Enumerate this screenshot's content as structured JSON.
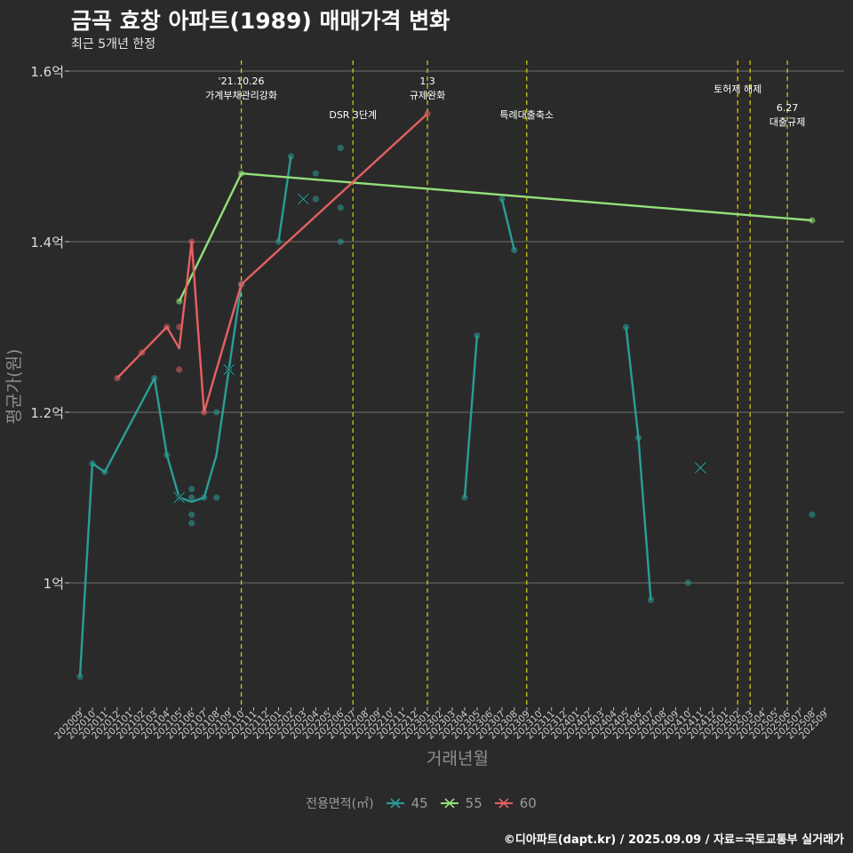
{
  "header": {
    "title": "금곡 효창 아파트(1989) 매매가격 변화",
    "subtitle": "최근 5개년 한정"
  },
  "caption": "©디아파트(dapt.kr) / 2025.09.09 / 자료=국토교통부 실거래가",
  "legend": {
    "title": "전용면적(㎡)",
    "items": [
      {
        "label": "45",
        "color": "#2a9d96"
      },
      {
        "label": "55",
        "color": "#93e07a"
      },
      {
        "label": "60",
        "color": "#e36161"
      }
    ]
  },
  "chart_data": {
    "type": "line",
    "title": "금곡 효창 아파트(1989) 매매가격 변화",
    "xlabel": "거래년월",
    "ylabel": "평균가(원)",
    "ylim": [
      0.86,
      1.62
    ],
    "yticks": [
      {
        "value": 1.0,
        "label": "1억"
      },
      {
        "value": 1.2,
        "label": "1.2억"
      },
      {
        "value": 1.4,
        "label": "1.4억"
      },
      {
        "value": 1.6,
        "label": "1.6억"
      }
    ],
    "categories": [
      "202009",
      "202010",
      "202011",
      "202012",
      "202101",
      "202102",
      "202103",
      "202104",
      "202105",
      "202106",
      "202107",
      "202108",
      "202109",
      "202110",
      "202111",
      "202112",
      "202201",
      "202202",
      "202203",
      "202204",
      "202205",
      "202206",
      "202207",
      "202208",
      "202209",
      "202210",
      "202211",
      "202212",
      "202301",
      "202302",
      "202303",
      "202304",
      "202305",
      "202306",
      "202307",
      "202308",
      "202309",
      "202310",
      "202311",
      "202312",
      "202401",
      "202402",
      "202403",
      "202404",
      "202405",
      "202406",
      "202407",
      "202408",
      "202409",
      "202410",
      "202411",
      "202412",
      "202501",
      "202502",
      "202503",
      "202504",
      "202505",
      "202506",
      "202507",
      "202508",
      "202509"
    ],
    "annotations": [
      {
        "month": "202110",
        "lines": [
          "'21.10.26",
          "가계부채관리강화"
        ],
        "level": 0
      },
      {
        "month": "202207",
        "lines": [
          "DSR 3단계"
        ],
        "level": 2
      },
      {
        "month": "202301",
        "lines": [
          "1.3",
          "규제완화"
        ],
        "level": 0
      },
      {
        "month": "202309",
        "lines": [
          "특례대출축소"
        ],
        "level": 2
      },
      {
        "month": "202502",
        "lines": [
          "토허제 해제"
        ],
        "level": 1
      },
      {
        "month": "202503",
        "lines": [],
        "level": 1
      },
      {
        "month": "202506",
        "lines": [
          "6.27",
          "대출규제"
        ],
        "level": 3
      }
    ],
    "series": [
      {
        "name": "45",
        "color": "#2a9d96",
        "line_segments": [
          [
            [
              "202009",
              0.89
            ],
            [
              "202010",
              1.14
            ],
            [
              "202011",
              1.13
            ],
            [
              "202103",
              1.24
            ],
            [
              "202104",
              1.15
            ],
            [
              "202105",
              1.1
            ],
            [
              "202106",
              1.095
            ],
            [
              "202107",
              1.1
            ],
            [
              "202108",
              1.15
            ],
            [
              "202109",
              1.25
            ],
            [
              "202110",
              1.35
            ]
          ],
          [
            [
              "202201",
              1.4
            ],
            [
              "202202",
              1.5
            ]
          ],
          [
            [
              "202304",
              1.1
            ],
            [
              "202305",
              1.29
            ]
          ],
          [
            [
              "202307",
              1.45
            ],
            [
              "202308",
              1.39
            ]
          ],
          [
            [
              "202405",
              1.3
            ],
            [
              "202406",
              1.17
            ],
            [
              "202407",
              0.98
            ]
          ]
        ],
        "points": [
          [
            "202009",
            0.89
          ],
          [
            "202010",
            1.14
          ],
          [
            "202011",
            1.13
          ],
          [
            "202103",
            1.24
          ],
          [
            "202104",
            1.15
          ],
          [
            "202105",
            1.1
          ],
          [
            "202106",
            1.11
          ],
          [
            "202106",
            1.1
          ],
          [
            "202106",
            1.08
          ],
          [
            "202106",
            1.07
          ],
          [
            "202107",
            1.1
          ],
          [
            "202108",
            1.2
          ],
          [
            "202108",
            1.1
          ],
          [
            "202109",
            1.25
          ],
          [
            "202110",
            1.35
          ],
          [
            "202201",
            1.4
          ],
          [
            "202202",
            1.5
          ],
          [
            "202204",
            1.48
          ],
          [
            "202204",
            1.45
          ],
          [
            "202206",
            1.51
          ],
          [
            "202206",
            1.44
          ],
          [
            "202206",
            1.4
          ],
          [
            "202304",
            1.1
          ],
          [
            "202305",
            1.29
          ],
          [
            "202307",
            1.45
          ],
          [
            "202308",
            1.39
          ],
          [
            "202405",
            1.3
          ],
          [
            "202406",
            1.17
          ],
          [
            "202407",
            0.98
          ],
          [
            "202410",
            1.0
          ],
          [
            "202508",
            1.08
          ]
        ],
        "crosses": [
          [
            "202105",
            1.1
          ],
          [
            "202109",
            1.25
          ],
          [
            "202203",
            1.45
          ],
          [
            "202411",
            1.135
          ]
        ]
      },
      {
        "name": "55",
        "color": "#93e07a",
        "line_segments": [
          [
            [
              "202105",
              1.33
            ],
            [
              "202110",
              1.48
            ],
            [
              "202508",
              1.425
            ]
          ]
        ],
        "points": [
          [
            "202105",
            1.33
          ],
          [
            "202110",
            1.48
          ],
          [
            "202508",
            1.425
          ]
        ],
        "crosses": []
      },
      {
        "name": "60",
        "color": "#e36161",
        "line_segments": [
          [
            [
              "202012",
              1.24
            ],
            [
              "202102",
              1.27
            ],
            [
              "202104",
              1.3
            ],
            [
              "202105",
              1.275
            ],
            [
              "202106",
              1.4
            ],
            [
              "202107",
              1.2
            ],
            [
              "202110",
              1.35
            ],
            [
              "202301",
              1.55
            ]
          ]
        ],
        "points": [
          [
            "202012",
            1.24
          ],
          [
            "202102",
            1.27
          ],
          [
            "202104",
            1.3
          ],
          [
            "202105",
            1.3
          ],
          [
            "202105",
            1.25
          ],
          [
            "202106",
            1.4
          ],
          [
            "202107",
            1.2
          ],
          [
            "202110",
            1.35
          ],
          [
            "202301",
            1.55
          ]
        ],
        "crosses": []
      }
    ]
  }
}
